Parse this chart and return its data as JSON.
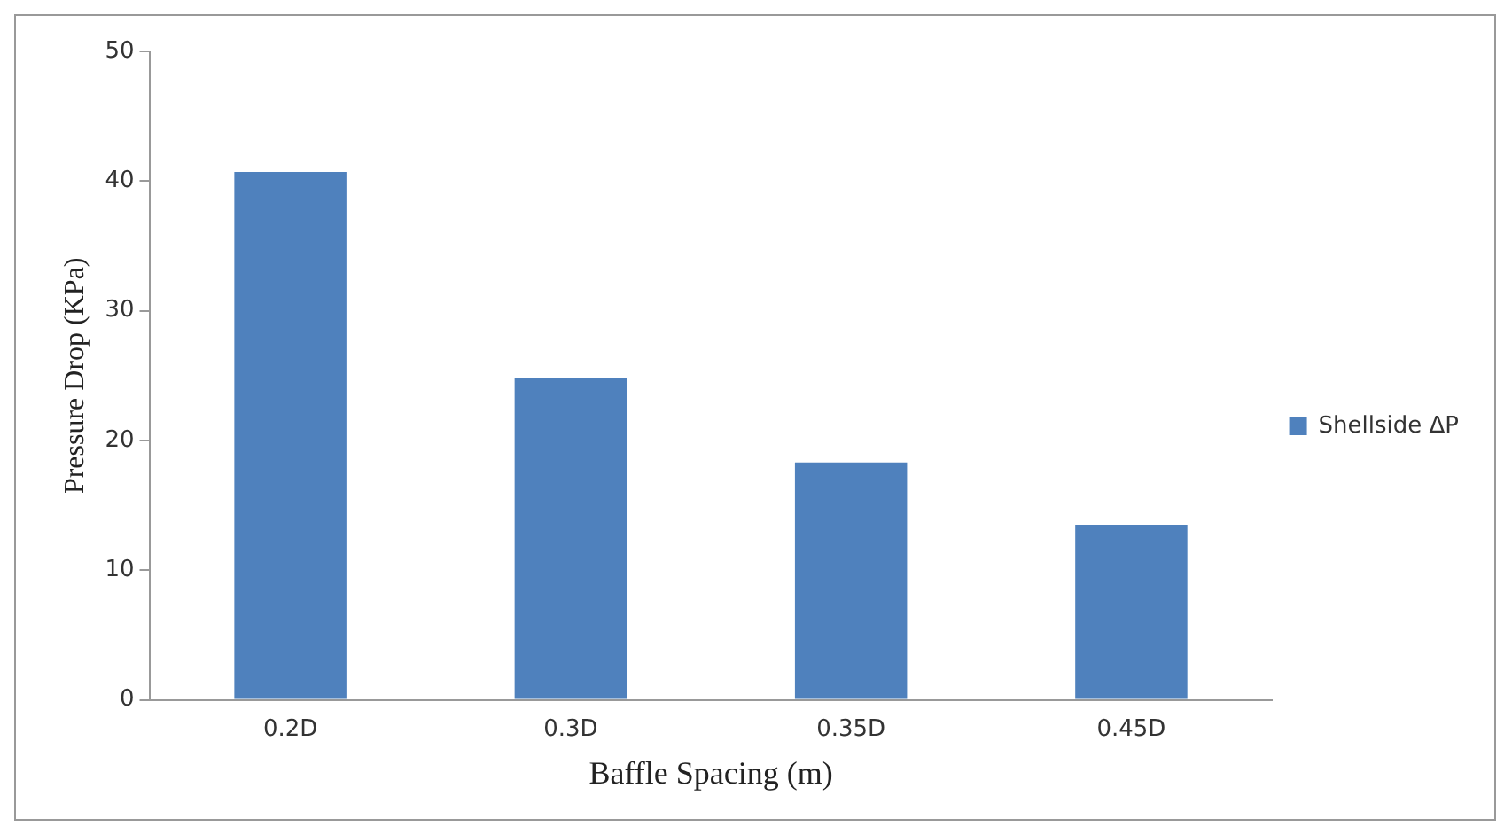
{
  "chart_data": {
    "type": "bar",
    "xlabel": "Baffle Spacing (m)",
    "ylabel": "Pressure Drop (KPa)",
    "categories": [
      "0.2D",
      "0.3D",
      "0.35D",
      "0.45D"
    ],
    "series": [
      {
        "name": "Shellside ΔP",
        "color": "#4f81bd",
        "values": [
          40.7,
          24.8,
          18.3,
          13.5
        ]
      }
    ],
    "ylim": [
      0,
      50
    ],
    "yticks": [
      0,
      10,
      20,
      30,
      40,
      50
    ],
    "grid": false,
    "legend": "right"
  }
}
